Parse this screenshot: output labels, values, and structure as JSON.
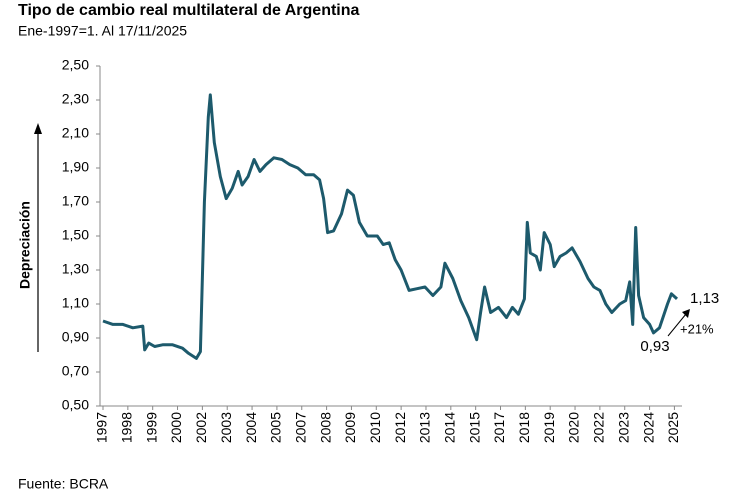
{
  "chart_data": {
    "type": "line",
    "title": "Tipo de cambio real multilateral de Argentina",
    "subtitle": "Ene-1997=1. Al 17/11/2025",
    "y_label": "Depreciación",
    "source": "Fuente: BCRA",
    "annotations": [
      "1,13",
      "0,93",
      "+21%"
    ],
    "xlim": [
      1997,
      2025.88
    ],
    "ylim": [
      0.5,
      2.5
    ],
    "yticks": [
      {
        "value": 0.5,
        "label": "0,50"
      },
      {
        "value": 0.7,
        "label": "0,70"
      },
      {
        "value": 0.9,
        "label": "0,90"
      },
      {
        "value": 1.1,
        "label": "1,10"
      },
      {
        "value": 1.3,
        "label": "1,30"
      },
      {
        "value": 1.5,
        "label": "1,50"
      },
      {
        "value": 1.7,
        "label": "1,70"
      },
      {
        "value": 1.9,
        "label": "1,90"
      },
      {
        "value": 2.1,
        "label": "2,10"
      },
      {
        "value": 2.3,
        "label": "2,30"
      },
      {
        "value": 2.5,
        "label": "2,50"
      }
    ],
    "xticks": [
      1997,
      {
        "value": 1998.25,
        "label": "1998"
      },
      {
        "value": 1999.5,
        "label": "1999"
      },
      {
        "value": 2000.75,
        "label": "2000"
      },
      2002,
      {
        "value": 2003.25,
        "label": "2003"
      },
      {
        "value": 2004.5,
        "label": "2004"
      },
      {
        "value": 2005.75,
        "label": "2005"
      },
      2007,
      {
        "value": 2008.25,
        "label": "2008"
      },
      {
        "value": 2009.5,
        "label": "2009"
      },
      {
        "value": 2010.75,
        "label": "2010"
      },
      2012,
      {
        "value": 2013.25,
        "label": "2013"
      },
      {
        "value": 2014.5,
        "label": "2014"
      },
      {
        "value": 2015.75,
        "label": "2015"
      },
      2017,
      {
        "value": 2018.25,
        "label": "2018"
      },
      {
        "value": 2019.5,
        "label": "2019"
      },
      {
        "value": 2020.75,
        "label": "2020"
      },
      2022,
      {
        "value": 2023.25,
        "label": "2023"
      },
      {
        "value": 2024.5,
        "label": "2024"
      },
      {
        "value": 2025.75,
        "label": "2025"
      }
    ],
    "color": "#1d5a6c",
    "x": [
      1997.0,
      1997.5,
      1998.0,
      1998.5,
      1999.0,
      1999.1,
      1999.3,
      1999.6,
      2000.0,
      2000.5,
      2001.0,
      2001.3,
      2001.7,
      2001.9,
      2002.1,
      2002.3,
      2002.4,
      2002.6,
      2002.9,
      2003.2,
      2003.5,
      2003.8,
      2004.0,
      2004.3,
      2004.6,
      2004.9,
      2005.2,
      2005.6,
      2006.0,
      2006.4,
      2006.8,
      2007.2,
      2007.6,
      2007.9,
      2008.1,
      2008.3,
      2008.6,
      2009.0,
      2009.3,
      2009.6,
      2009.9,
      2010.3,
      2010.8,
      2011.1,
      2011.4,
      2011.7,
      2012.0,
      2012.4,
      2012.8,
      2013.2,
      2013.6,
      2014.0,
      2014.2,
      2014.6,
      2015.0,
      2015.4,
      2015.8,
      2016.0,
      2016.2,
      2016.5,
      2016.9,
      2017.3,
      2017.6,
      2017.9,
      2018.2,
      2018.35,
      2018.5,
      2018.8,
      2019.0,
      2019.2,
      2019.5,
      2019.7,
      2020.0,
      2020.3,
      2020.6,
      2021.0,
      2021.4,
      2021.7,
      2022.0,
      2022.3,
      2022.6,
      2023.0,
      2023.3,
      2023.5,
      2023.65,
      2023.8,
      2023.95,
      2024.2,
      2024.5,
      2024.7,
      2025.0,
      2025.4,
      2025.6,
      2025.88
    ],
    "values": [
      1.0,
      0.98,
      0.98,
      0.96,
      0.97,
      0.83,
      0.87,
      0.85,
      0.86,
      0.86,
      0.84,
      0.81,
      0.78,
      0.82,
      1.7,
      2.2,
      2.33,
      2.05,
      1.85,
      1.72,
      1.78,
      1.88,
      1.8,
      1.85,
      1.95,
      1.88,
      1.92,
      1.96,
      1.95,
      1.92,
      1.9,
      1.86,
      1.86,
      1.83,
      1.72,
      1.52,
      1.53,
      1.63,
      1.77,
      1.74,
      1.58,
      1.5,
      1.5,
      1.45,
      1.46,
      1.36,
      1.3,
      1.18,
      1.19,
      1.2,
      1.15,
      1.2,
      1.34,
      1.25,
      1.12,
      1.02,
      0.89,
      1.05,
      1.2,
      1.05,
      1.08,
      1.02,
      1.08,
      1.04,
      1.13,
      1.58,
      1.4,
      1.38,
      1.3,
      1.52,
      1.45,
      1.32,
      1.38,
      1.4,
      1.43,
      1.35,
      1.25,
      1.2,
      1.18,
      1.1,
      1.05,
      1.1,
      1.12,
      1.23,
      0.98,
      1.55,
      1.15,
      1.02,
      0.98,
      0.93,
      0.96,
      1.1,
      1.16,
      1.13
    ]
  }
}
